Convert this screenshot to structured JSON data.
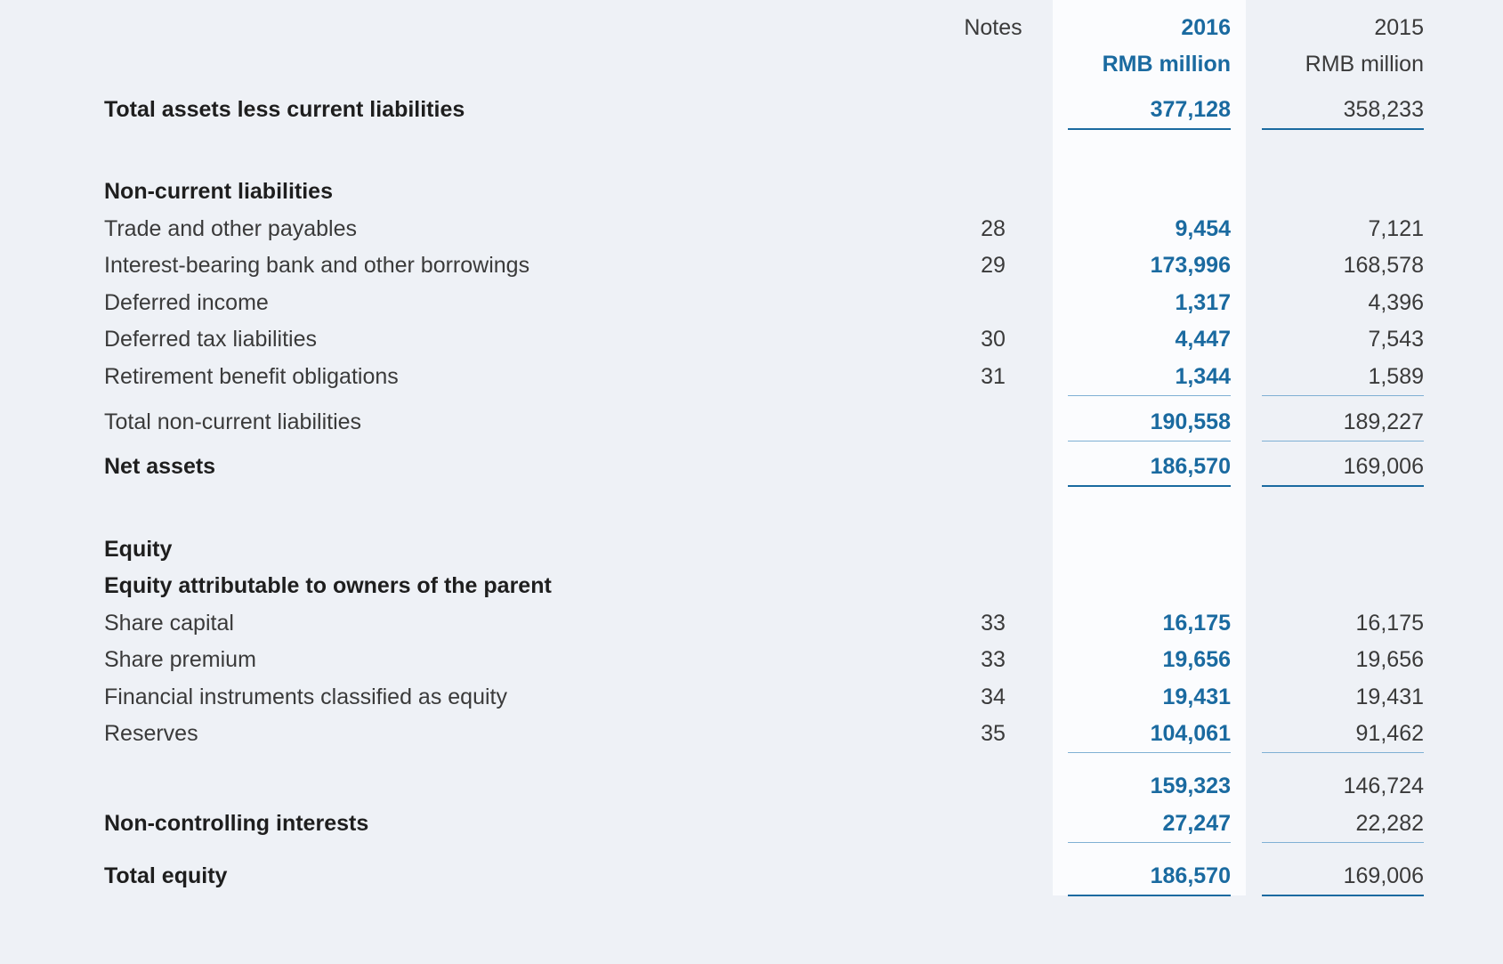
{
  "header": {
    "notes": "Notes",
    "year_current": "2016",
    "unit_current": "RMB million",
    "year_prior": "2015",
    "unit_prior": "RMB million"
  },
  "rows": [
    {
      "label": "Total assets less current liabilities",
      "current": "377,128",
      "prior": "358,233"
    },
    {
      "label": "Non-current liabilities"
    },
    {
      "label": "Trade and other payables",
      "note": "28",
      "current": "9,454",
      "prior": "7,121"
    },
    {
      "label": "Interest-bearing bank and other borrowings",
      "note": "29",
      "current": "173,996",
      "prior": "168,578"
    },
    {
      "label": "Deferred income",
      "current": "1,317",
      "prior": "4,396"
    },
    {
      "label": "Deferred tax liabilities",
      "note": "30",
      "current": "4,447",
      "prior": "7,543"
    },
    {
      "label": "Retirement benefit obligations",
      "note": "31",
      "current": "1,344",
      "prior": "1,589"
    },
    {
      "label": "Total non-current liabilities",
      "current": "190,558",
      "prior": "189,227"
    },
    {
      "label": "Net assets",
      "current": "186,570",
      "prior": "169,006"
    },
    {
      "label": "Equity"
    },
    {
      "label": "Equity attributable to owners of the parent"
    },
    {
      "label": "Share capital",
      "note": "33",
      "current": "16,175",
      "prior": "16,175"
    },
    {
      "label": "Share premium",
      "note": "33",
      "current": "19,656",
      "prior": "19,656"
    },
    {
      "label": "Financial instruments classified as equity",
      "note": "34",
      "current": "19,431",
      "prior": "19,431"
    },
    {
      "label": "Reserves",
      "note": "35",
      "current": "104,061",
      "prior": "91,462"
    },
    {
      "current": "159,323",
      "prior": "146,724"
    },
    {
      "label": "Non-controlling interests",
      "current": "27,247",
      "prior": "22,282"
    },
    {
      "label": "Total equity",
      "current": "186,570",
      "prior": "169,006"
    }
  ]
}
